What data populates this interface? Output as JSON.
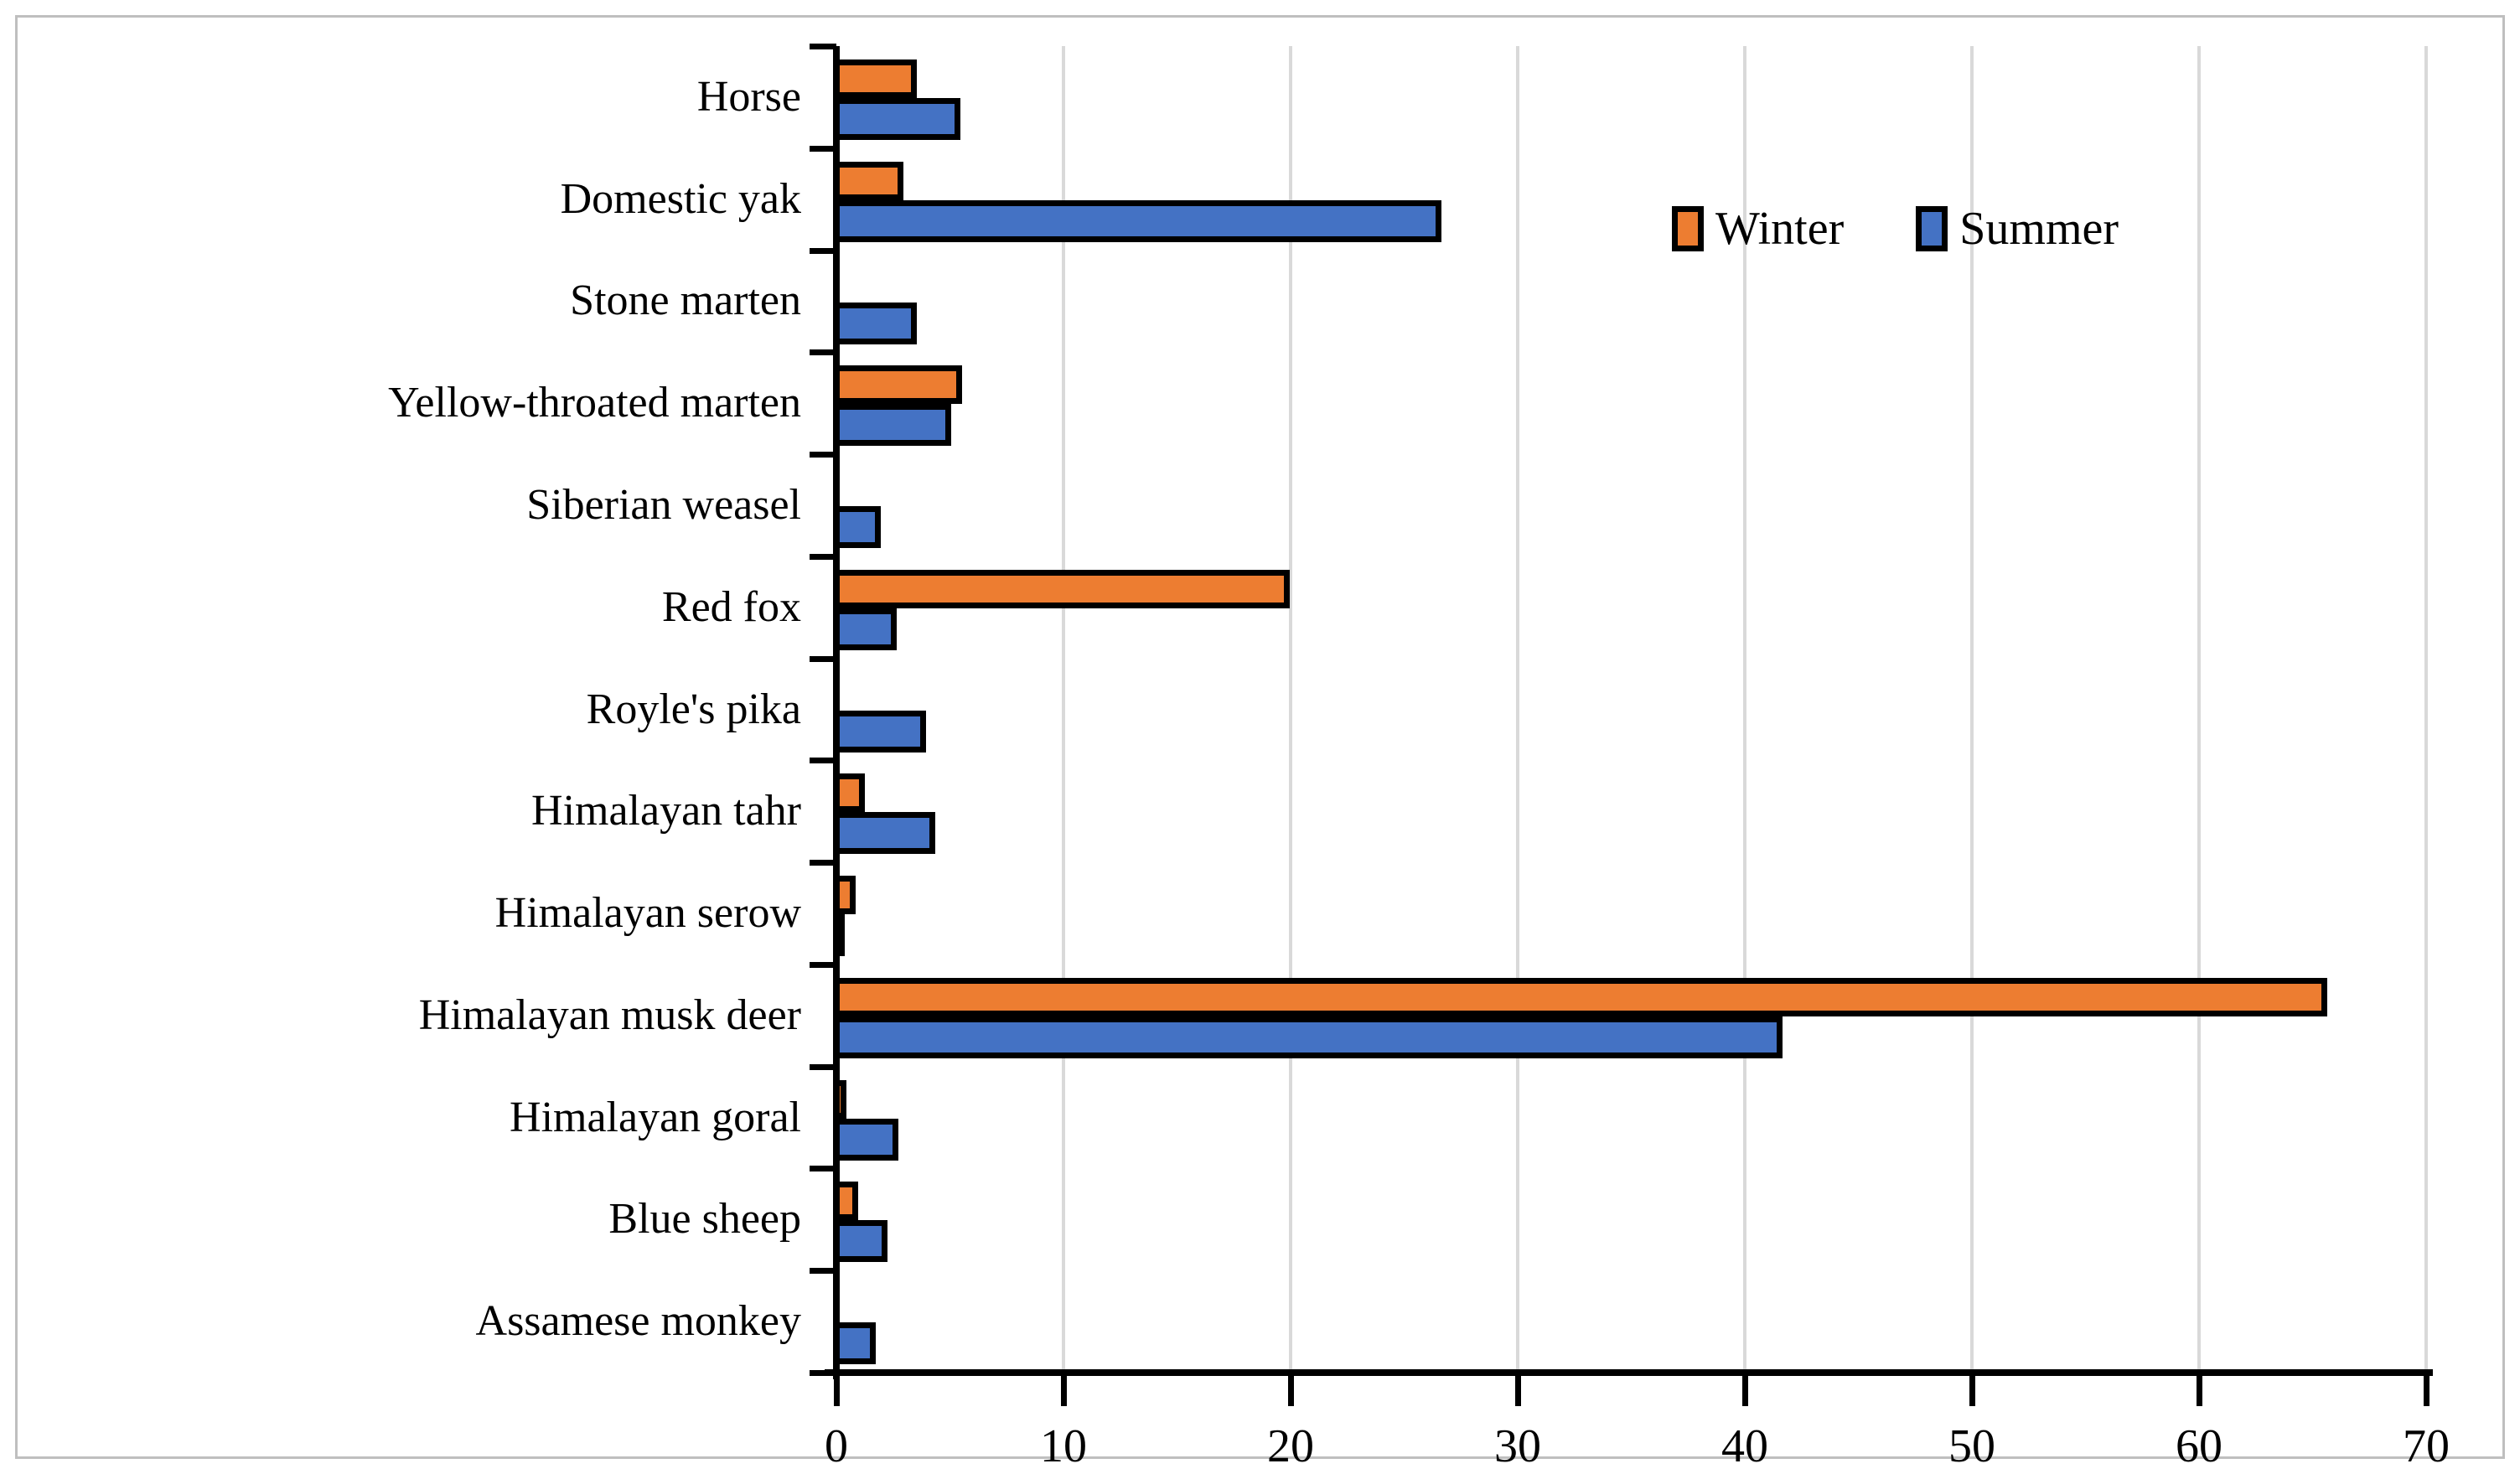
{
  "chart_data": {
    "type": "bar",
    "orientation": "horizontal",
    "title": "",
    "xlabel": "",
    "ylabel": "",
    "xlim": [
      0,
      70
    ],
    "x_ticks": [
      0,
      10,
      20,
      30,
      40,
      50,
      60,
      70
    ],
    "grid": "vertical-gridlines-at-each-10",
    "legend_position": "inside-top-right",
    "categories": [
      "Horse",
      "Domestic yak",
      "Stone marten",
      "Yellow-throated marten",
      "Siberian weasel",
      "Red fox",
      "Royle's pika",
      "Himalayan tahr",
      "Himalayan serow",
      "Himalayan musk deer",
      "Himalayan goral",
      "Blue sheep",
      "Assamese monkey"
    ],
    "series": [
      {
        "name": "Winter",
        "color": "#ED7D31",
        "values": [
          3.4,
          2.8,
          0,
          5.4,
          0,
          19.8,
          0,
          1.1,
          0.7,
          65.5,
          0.3,
          0.8,
          0
        ]
      },
      {
        "name": "Summer",
        "color": "#4472C4",
        "values": [
          5.3,
          26.5,
          3.4,
          4.9,
          1.8,
          2.5,
          3.8,
          4.2,
          0.2,
          41.5,
          2.6,
          2.1,
          1.6
        ]
      }
    ],
    "colors": {
      "bar_outline": "#000000",
      "gridline": "#D9D9D9",
      "axis": "#000000",
      "frame_border": "#BFBFBF",
      "background": "#FFFFFF"
    }
  }
}
